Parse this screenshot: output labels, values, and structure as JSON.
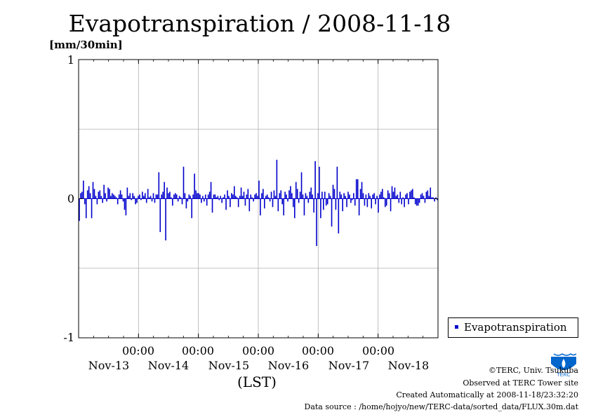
{
  "chart_data": {
    "type": "bar",
    "title": "Evapotranspiration / 2008-11-18",
    "ylabel": "[mm/30min]",
    "xlabel": "(LST)",
    "ylim": [
      -1,
      1
    ],
    "y_ticks": [
      "1",
      "0",
      "-1"
    ],
    "x_time_labels": [
      "00:00",
      "00:00",
      "00:00",
      "00:00",
      "00:00"
    ],
    "x_date_labels": [
      "Nov-13",
      "Nov-14",
      "Nov-15",
      "Nov-16",
      "Nov-17",
      "Nov-18"
    ],
    "grid": true,
    "legend": {
      "position": "bottom-right",
      "entries": [
        "Evapotranspiration"
      ]
    },
    "series": [
      {
        "name": "Evapotranspiration",
        "color": "#0000cc",
        "x_range_days": [
          "2008-11-13 00:00",
          "2008-11-19 00:00"
        ],
        "interval": "30min",
        "values": [
          -0.16,
          0.04,
          0.05,
          0.13,
          -0.04,
          -0.14,
          0.06,
          0.09,
          0.04,
          -0.14,
          0.12,
          0.07,
          0.02,
          -0.04,
          0.05,
          0.06,
          0.02,
          -0.03,
          0.1,
          0.04,
          -0.02,
          0.08,
          0.07,
          0.02,
          0.04,
          0.03,
          0.02,
          0.01,
          -0.04,
          0.03,
          0.06,
          0.03,
          -0.02,
          -0.08,
          -0.12,
          0.08,
          0.02,
          0.04,
          -0.01,
          0.04,
          0.02,
          -0.04,
          -0.03,
          0.02,
          0.03,
          -0.01,
          0.05,
          0.02,
          0.04,
          -0.03,
          0.07,
          0.01,
          0.02,
          -0.02,
          0.04,
          -0.03,
          0.03,
          0.03,
          0.19,
          -0.24,
          0.03,
          0.05,
          0.12,
          -0.3,
          0.08,
          0.04,
          0.05,
          0.01,
          -0.05,
          0.03,
          0.04,
          0.03,
          -0.02,
          0.02,
          0.01,
          -0.04,
          0.23,
          0.04,
          -0.07,
          -0.02,
          0.03,
          0.02,
          -0.14,
          0.03,
          0.18,
          0.06,
          0.04,
          0.04,
          0.03,
          -0.03,
          0.02,
          -0.02,
          0.03,
          -0.05,
          0.03,
          0.05,
          0.12,
          -0.1,
          0.03,
          0.03,
          0.01,
          0.02,
          -0.01,
          0.02,
          -0.03,
          0.01,
          0.03,
          -0.08,
          0.06,
          0.02,
          -0.06,
          0.04,
          0.03,
          0.09,
          0.02,
          0.01,
          -0.06,
          0.02,
          0.08,
          0.02,
          0.05,
          -0.05,
          0.03,
          0.07,
          -0.09,
          0.03,
          0.01,
          -0.02,
          0.03,
          0.04,
          0.02,
          0.13,
          -0.12,
          0.04,
          0.07,
          -0.07,
          0.02,
          0.03,
          0.01,
          -0.02,
          0.05,
          -0.06,
          0.06,
          0.02,
          0.28,
          -0.09,
          0.04,
          0.06,
          -0.04,
          -0.12,
          0.05,
          0.03,
          -0.02,
          0.06,
          0.09,
          0.04,
          -0.06,
          -0.14,
          0.12,
          0.07,
          -0.03,
          0.05,
          0.19,
          0.03,
          -0.12,
          0.04,
          0.02,
          -0.03,
          0.05,
          0.08,
          0.03,
          -0.1,
          0.27,
          -0.34,
          0.04,
          0.23,
          -0.14,
          0.05,
          -0.08,
          0.05,
          -0.05,
          -0.04,
          0.04,
          0.02,
          -0.2,
          0.1,
          0.07,
          -0.08,
          0.23,
          -0.25,
          0.05,
          0.03,
          -0.09,
          0.04,
          0.02,
          -0.06,
          0.05,
          0.03,
          -0.03,
          -0.01,
          0.04,
          -0.05,
          0.14,
          0.14,
          -0.12,
          0.07,
          0.12,
          0.04,
          -0.05,
          0.03,
          -0.06,
          0.04,
          0.02,
          -0.07,
          0.03,
          0.04,
          -0.04,
          0.02,
          -0.1,
          0.03,
          0.05,
          0.07,
          0.01,
          -0.06,
          -0.05,
          0.06,
          0.04,
          -0.09,
          0.09,
          0.05,
          0.08,
          0.02,
          0.03,
          -0.03,
          0.05,
          -0.04,
          0.01,
          -0.06,
          0.03,
          0.04,
          -0.04,
          0.05,
          0.06,
          0.07,
          0.01,
          -0.04,
          -0.05,
          -0.05,
          -0.03,
          0.03,
          0.04,
          0.02,
          -0.03,
          0.05,
          0.06,
          0.02,
          0.08,
          0.01,
          0.01,
          -0.02,
          0.01,
          -0.01
        ]
      }
    ]
  },
  "credits": {
    "line1": "©TERC, Univ. Tsukuba",
    "line2": "Observed at TERC Tower site",
    "line3": "Created Automatically at 2008-11-18/23:32:20",
    "line4": "Data source : /home/hojyo/new/TERC-data/sorted_data/FLUX.30m.dat"
  },
  "logo": {
    "text": "TERC",
    "color": "#0066cc"
  }
}
